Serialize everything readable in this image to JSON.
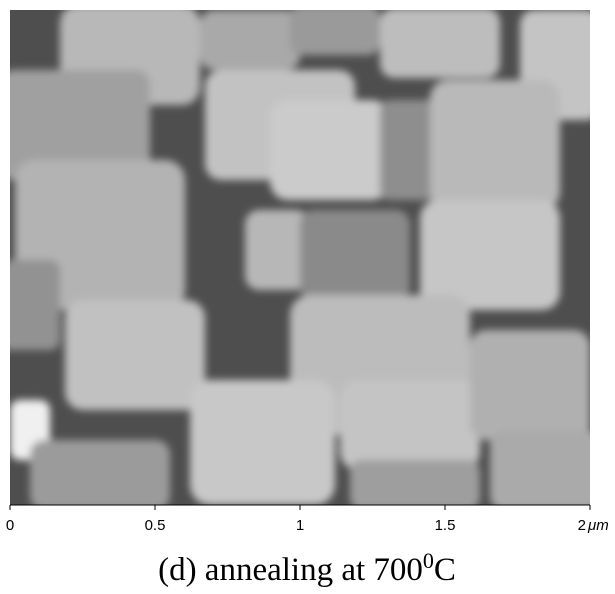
{
  "image": {
    "x_axis": {
      "lim": [
        0,
        2
      ],
      "ticks": [
        0,
        0.5,
        1,
        1.5,
        2
      ],
      "unit": "μm"
    }
  },
  "caption": {
    "text": "(d) annealing at 700",
    "superscript": "0",
    "suffix": "C"
  }
}
